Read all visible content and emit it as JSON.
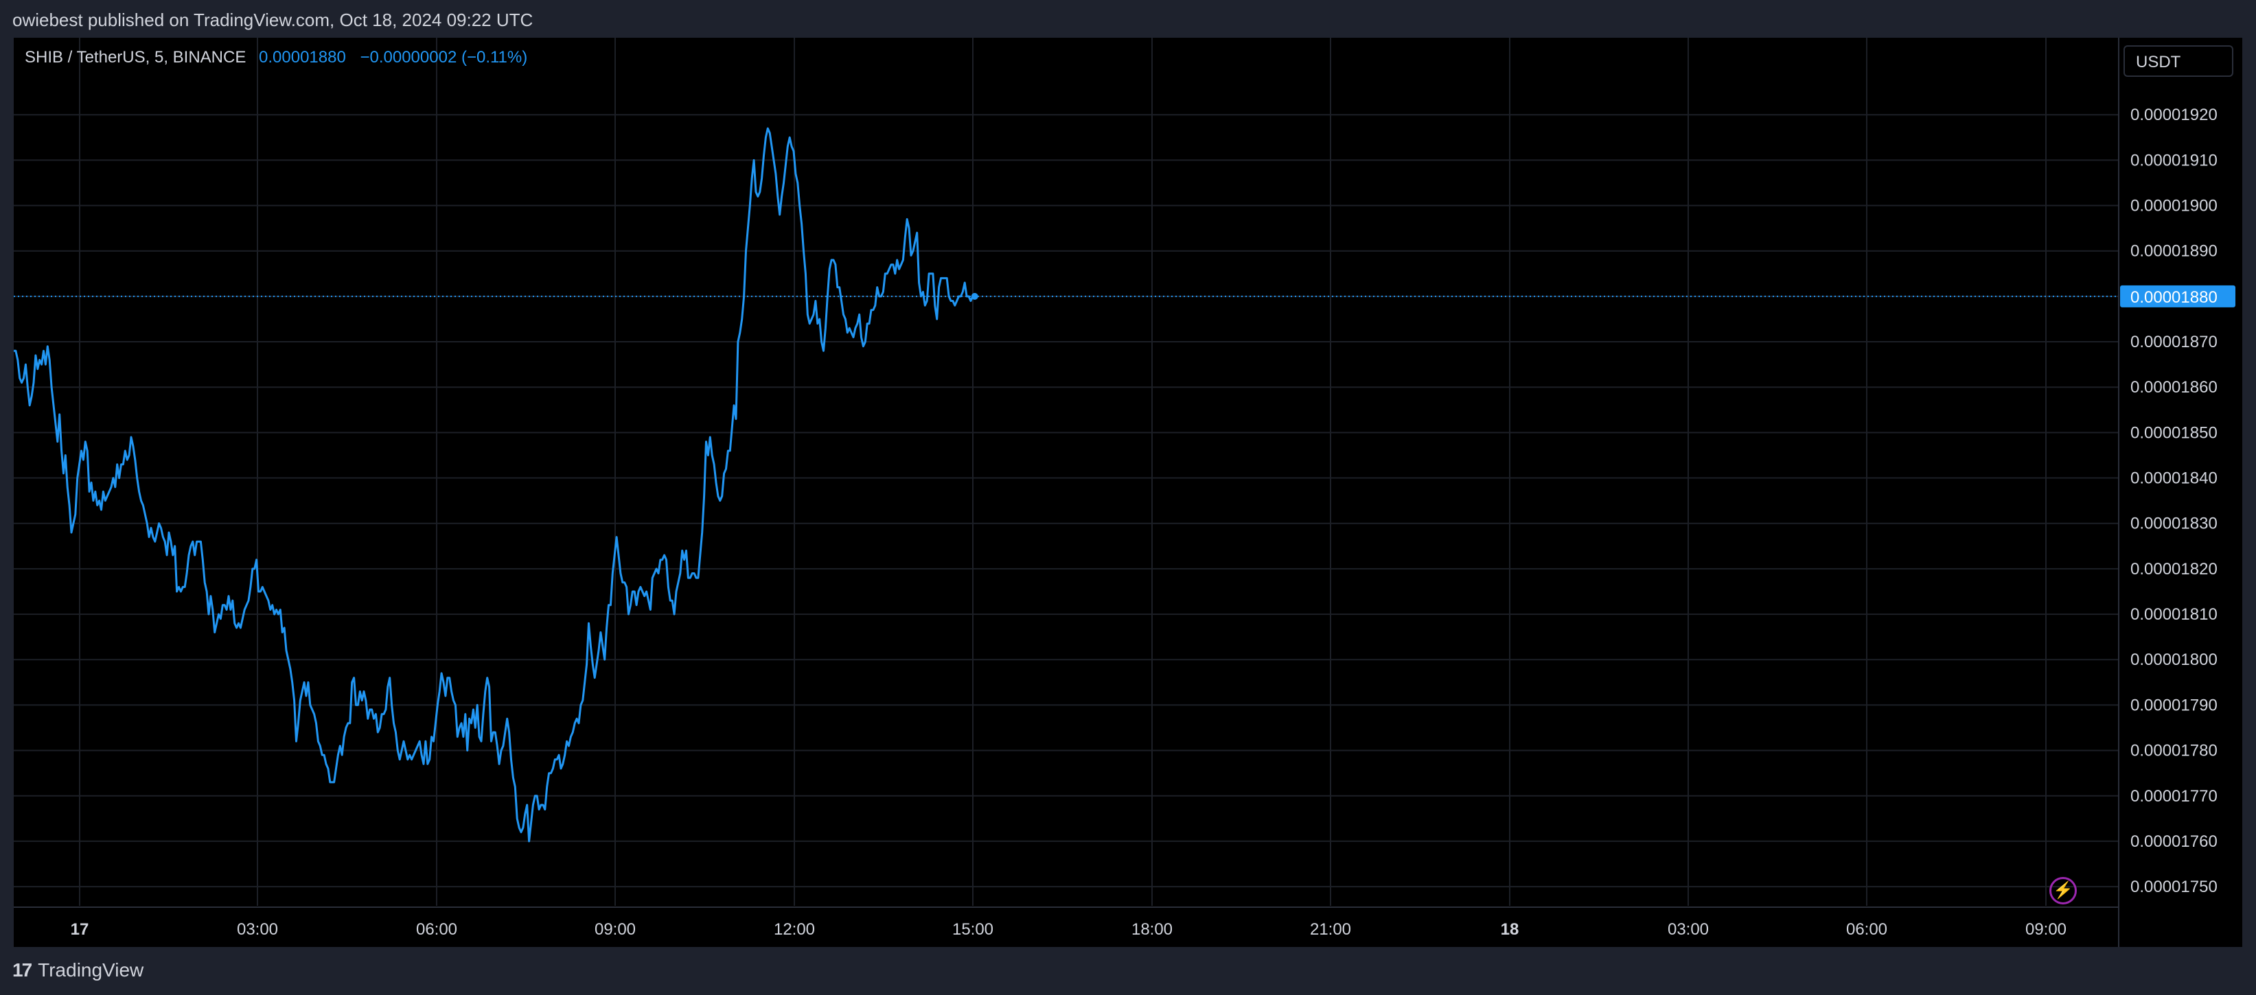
{
  "header": {
    "published": "owiebest published on TradingView.com, Oct 18, 2024 09:22 UTC"
  },
  "legend": {
    "symbol": "SHIB / TetherUS, 5, BINANCE",
    "last": "0.00001880",
    "change": "−0.00000002 (−0.11%)"
  },
  "unit_label": "USDT",
  "footer": {
    "brand": "TradingView"
  },
  "colors": {
    "line": "#2196f3",
    "background": "#000000",
    "grid": "#1c1f26",
    "text": "#d1d4dc",
    "accent": "#9c27b0"
  },
  "chart_data": {
    "type": "line",
    "series": [
      {
        "values": [
          1868,
          1868,
          1866,
          1862,
          1861,
          1862,
          1865,
          1860,
          1856,
          1858,
          1861,
          1867,
          1864,
          1866,
          1865,
          1868,
          1865,
          1869,
          1866,
          1860,
          1856,
          1852,
          1848,
          1854,
          1846,
          1841,
          1845,
          1838,
          1834,
          1828,
          1830,
          1832,
          1840,
          1843,
          1846,
          1844,
          1848,
          1846,
          1837,
          1839,
          1835,
          1837,
          1834,
          1835,
          1833,
          1837,
          1835,
          1836,
          1837,
          1838,
          1840,
          1838,
          1843,
          1840,
          1843,
          1843,
          1846,
          1844,
          1845,
          1849,
          1847,
          1844,
          1840,
          1837,
          1835,
          1834,
          1832,
          1830,
          1827,
          1829,
          1827,
          1826,
          1828,
          1830,
          1829,
          1827,
          1826,
          1823,
          1828,
          1826,
          1823,
          1825,
          1815,
          1816,
          1815,
          1816,
          1816,
          1819,
          1823,
          1825,
          1826,
          1823,
          1826,
          1826,
          1826,
          1822,
          1817,
          1815,
          1810,
          1814,
          1811,
          1806,
          1808,
          1810,
          1809,
          1812,
          1812,
          1811,
          1814,
          1811,
          1813,
          1808,
          1807,
          1808,
          1807,
          1809,
          1811,
          1812,
          1813,
          1816,
          1820,
          1820,
          1822,
          1815,
          1815,
          1816,
          1815,
          1814,
          1813,
          1811,
          1812,
          1810,
          1811,
          1810,
          1811,
          1806,
          1807,
          1802,
          1800,
          1798,
          1795,
          1791,
          1782,
          1786,
          1791,
          1793,
          1795,
          1792,
          1795,
          1790,
          1789,
          1788,
          1786,
          1782,
          1781,
          1779,
          1779,
          1777,
          1776,
          1773,
          1773,
          1773,
          1776,
          1779,
          1781,
          1779,
          1783,
          1785,
          1786,
          1786,
          1795,
          1796,
          1790,
          1790,
          1793,
          1791,
          1793,
          1791,
          1787,
          1789,
          1789,
          1787,
          1788,
          1784,
          1785,
          1788,
          1788,
          1789,
          1794,
          1796,
          1790,
          1786,
          1784,
          1780,
          1778,
          1780,
          1782,
          1780,
          1778,
          1779,
          1778,
          1779,
          1780,
          1781,
          1782,
          1779,
          1777,
          1782,
          1777,
          1778,
          1783,
          1782,
          1786,
          1790,
          1793,
          1797,
          1795,
          1792,
          1796,
          1796,
          1793,
          1791,
          1790,
          1783,
          1785,
          1786,
          1783,
          1788,
          1780,
          1787,
          1786,
          1789,
          1785,
          1790,
          1783,
          1782,
          1788,
          1793,
          1796,
          1794,
          1782,
          1784,
          1784,
          1781,
          1777,
          1780,
          1781,
          1784,
          1787,
          1784,
          1778,
          1774,
          1772,
          1765,
          1763,
          1762,
          1763,
          1766,
          1768,
          1760,
          1764,
          1768,
          1770,
          1770,
          1767,
          1768,
          1768,
          1767,
          1772,
          1775,
          1775,
          1776,
          1778,
          1778,
          1779,
          1776,
          1777,
          1779,
          1782,
          1781,
          1783,
          1784,
          1786,
          1787,
          1786,
          1790,
          1791,
          1795,
          1799,
          1808,
          1803,
          1799,
          1796,
          1799,
          1802,
          1806,
          1803,
          1800,
          1807,
          1812,
          1812,
          1819,
          1823,
          1827,
          1823,
          1819,
          1817,
          1817,
          1816,
          1810,
          1812,
          1815,
          1815,
          1812,
          1815,
          1816,
          1815,
          1814,
          1815,
          1813,
          1811,
          1818,
          1819,
          1820,
          1819,
          1822,
          1822,
          1823,
          1822,
          1816,
          1813,
          1813,
          1810,
          1815,
          1817,
          1819,
          1824,
          1822,
          1824,
          1818,
          1818,
          1819,
          1819,
          1818,
          1818,
          1823,
          1828,
          1836,
          1848,
          1845,
          1849,
          1845,
          1843,
          1839,
          1836,
          1835,
          1836,
          1841,
          1842,
          1846,
          1846,
          1851,
          1856,
          1853,
          1870,
          1872,
          1875,
          1880,
          1890,
          1895,
          1900,
          1906,
          1910,
          1903,
          1902,
          1903,
          1906,
          1911,
          1915,
          1917,
          1916,
          1913,
          1910,
          1907,
          1902,
          1898,
          1902,
          1905,
          1909,
          1913,
          1915,
          1913,
          1912,
          1907,
          1905,
          1900,
          1896,
          1890,
          1885,
          1876,
          1874,
          1875,
          1876,
          1879,
          1874,
          1875,
          1870,
          1868,
          1873,
          1880,
          1886,
          1888,
          1888,
          1887,
          1882,
          1882,
          1879,
          1876,
          1875,
          1872,
          1873,
          1872,
          1871,
          1873,
          1874,
          1876,
          1871,
          1869,
          1870,
          1874,
          1874,
          1877,
          1877,
          1878,
          1882,
          1880,
          1880,
          1881,
          1885,
          1885,
          1886,
          1887,
          1887,
          1885,
          1888,
          1886,
          1887,
          1888,
          1893,
          1897,
          1895,
          1889,
          1890,
          1892,
          1894,
          1883,
          1880,
          1881,
          1878,
          1879,
          1885,
          1885,
          1885,
          1878,
          1875,
          1882,
          1884,
          1884,
          1884,
          1884,
          1880,
          1879,
          1879,
          1878,
          1879,
          1880,
          1880,
          1881,
          1883,
          1880,
          1880,
          1879,
          1880,
          1880
        ]
      }
    ],
    "x_ticks": [
      "17",
      "03:00",
      "06:00",
      "09:00",
      "12:00",
      "15:00",
      "18:00",
      "21:00",
      "18",
      "03:00",
      "06:00",
      "09:00"
    ],
    "y_ticks": [
      "0.00001920",
      "0.00001910",
      "0.00001900",
      "0.00001890",
      "0.00001880",
      "0.00001870",
      "0.00001860",
      "0.00001850",
      "0.00001840",
      "0.00001830",
      "0.00001820",
      "0.00001810",
      "0.00001800",
      "0.00001790",
      "0.00001780",
      "0.00001770",
      "0.00001760",
      "0.00001750"
    ],
    "last_price_label": "0.00001880",
    "value_scale": "1e-8 USDT",
    "grid": true
  }
}
